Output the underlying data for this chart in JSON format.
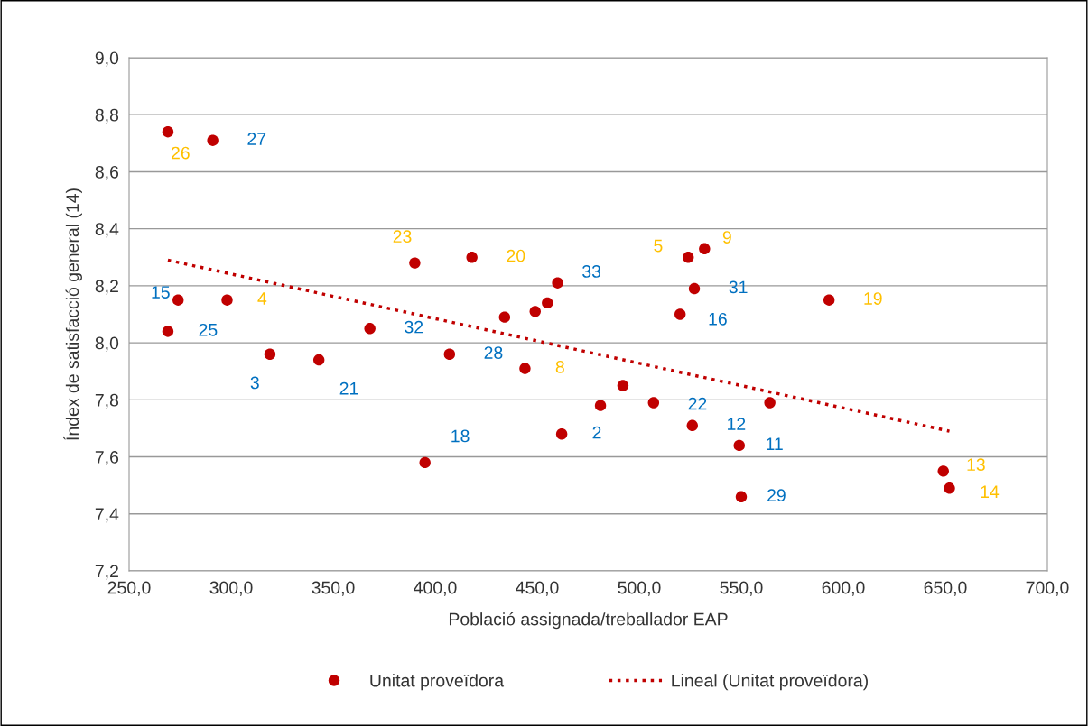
{
  "chart_data": {
    "type": "scatter",
    "xlabel": "Població assignada/treballador EAP",
    "ylabel": "Índex de satisfacció general (14)",
    "xlim": [
      250,
      700
    ],
    "ylim": [
      7.2,
      9.0
    ],
    "xticks": [
      {
        "value": 250,
        "label": "250,0"
      },
      {
        "value": 300,
        "label": "300,0"
      },
      {
        "value": 350,
        "label": "350,0"
      },
      {
        "value": 400,
        "label": "400,0"
      },
      {
        "value": 450,
        "label": "450,0"
      },
      {
        "value": 500,
        "label": "500,0"
      },
      {
        "value": 550,
        "label": "550,0"
      },
      {
        "value": 600,
        "label": "600,0"
      },
      {
        "value": 650,
        "label": "650,0"
      },
      {
        "value": 700,
        "label": "700,0"
      }
    ],
    "yticks": [
      {
        "value": 7.2,
        "label": "7,2"
      },
      {
        "value": 7.4,
        "label": "7,4"
      },
      {
        "value": 7.6,
        "label": "7,6"
      },
      {
        "value": 7.8,
        "label": "7,8"
      },
      {
        "value": 8.0,
        "label": "8,0"
      },
      {
        "value": 8.2,
        "label": "8,2"
      },
      {
        "value": 8.4,
        "label": "8,4"
      },
      {
        "value": 8.6,
        "label": "8,6"
      },
      {
        "value": 8.8,
        "label": "8,8"
      },
      {
        "value": 9.0,
        "label": "9,0"
      }
    ],
    "grid": "y",
    "legend": "bottom",
    "series": [
      {
        "name": "Unitat proveïdora",
        "marker": "circle",
        "color": "#c00000",
        "x": [
          269,
          291,
          390,
          418,
          274,
          298,
          269,
          319,
          343,
          368,
          407,
          395,
          434,
          449,
          455,
          460,
          444,
          462,
          481,
          492,
          507,
          524,
          532,
          527,
          520,
          526,
          549,
          550,
          564,
          593,
          649,
          652
        ],
        "values": [
          8.74,
          8.71,
          8.28,
          8.3,
          8.15,
          8.15,
          8.04,
          7.96,
          7.94,
          8.05,
          7.96,
          7.58,
          8.09,
          8.11,
          8.14,
          8.21,
          7.91,
          7.68,
          7.78,
          7.85,
          7.79,
          8.3,
          8.33,
          8.19,
          8.1,
          7.71,
          7.64,
          7.46,
          7.79,
          8.15,
          7.55,
          7.49
        ]
      },
      {
        "name": "Lineal (Unitat proveïdora)",
        "type": "line",
        "line_style": "dotted",
        "color": "#c00000",
        "x": [
          269,
          652
        ],
        "values": [
          8.29,
          7.69
        ]
      }
    ],
    "annotations": [
      {
        "text": "26",
        "x": 269,
        "y": 8.74
      },
      {
        "text": "27",
        "x": 291,
        "y": 8.71
      },
      {
        "text": "23",
        "x": 390,
        "y": 8.28
      },
      {
        "text": "20",
        "x": 418,
        "y": 8.3
      },
      {
        "text": "15",
        "x": 274,
        "y": 8.15
      },
      {
        "text": "4",
        "x": 298,
        "y": 8.15
      },
      {
        "text": "25",
        "x": 269,
        "y": 8.04
      },
      {
        "text": "3",
        "x": 319,
        "y": 7.96
      },
      {
        "text": "21",
        "x": 343,
        "y": 7.94
      },
      {
        "text": "32",
        "x": 368,
        "y": 8.05
      },
      {
        "text": "28",
        "x": 407,
        "y": 7.96
      },
      {
        "text": "18",
        "x": 395,
        "y": 7.58
      },
      {
        "text": "33",
        "x": 460,
        "y": 8.21
      },
      {
        "text": "8",
        "x": 444,
        "y": 7.91
      },
      {
        "text": "2",
        "x": 462,
        "y": 7.68
      },
      {
        "text": "22",
        "x": 507,
        "y": 7.79
      },
      {
        "text": "5",
        "x": 524,
        "y": 8.3
      },
      {
        "text": "9",
        "x": 532,
        "y": 8.33
      },
      {
        "text": "31",
        "x": 527,
        "y": 8.19
      },
      {
        "text": "16",
        "x": 520,
        "y": 8.1
      },
      {
        "text": "12",
        "x": 526,
        "y": 7.71
      },
      {
        "text": "11",
        "x": 549,
        "y": 7.64
      },
      {
        "text": "29",
        "x": 550,
        "y": 7.46
      },
      {
        "text": "19",
        "x": 593,
        "y": 8.15
      },
      {
        "text": "13",
        "x": 649,
        "y": 7.55
      },
      {
        "text": "14",
        "x": 652,
        "y": 7.49
      }
    ]
  }
}
